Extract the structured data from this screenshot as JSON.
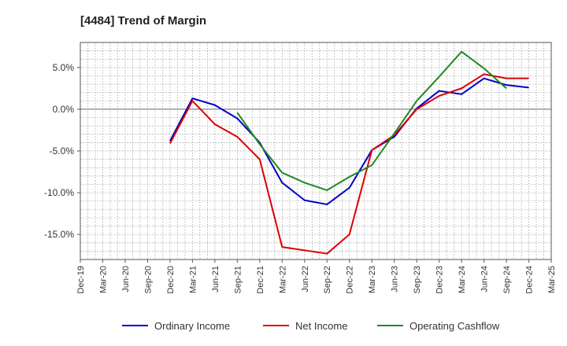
{
  "chart_data": {
    "type": "line",
    "title": "[4484]  Trend of Margin",
    "xlabel": "",
    "ylabel": "",
    "x": [
      "Dec-19",
      "Mar-20",
      "Jun-20",
      "Sep-20",
      "Dec-20",
      "Mar-21",
      "Jun-21",
      "Sep-21",
      "Dec-21",
      "Mar-22",
      "Jun-22",
      "Sep-22",
      "Dec-22",
      "Mar-23",
      "Jun-23",
      "Sep-23",
      "Dec-23",
      "Mar-24",
      "Jun-24",
      "Sep-24",
      "Dec-24",
      "Mar-25"
    ],
    "ylim": [
      -18,
      8
    ],
    "yticks": [
      5,
      0,
      -5,
      -10,
      -15
    ],
    "ytick_labels": [
      "5.0%",
      "0.0%",
      "-5.0%",
      "-10.0%",
      "-15.0%"
    ],
    "grid": true,
    "legend_position": "bottom",
    "series": [
      {
        "name": "Ordinary Income",
        "color": "#0000cc",
        "values": [
          null,
          null,
          null,
          null,
          -3.8,
          1.3,
          0.5,
          -1.1,
          -4.0,
          -8.8,
          -10.9,
          -11.4,
          -9.4,
          -4.9,
          -3.3,
          0.1,
          2.2,
          1.8,
          3.7,
          2.9,
          2.6,
          null
        ]
      },
      {
        "name": "Net Income",
        "color": "#dd0000",
        "values": [
          null,
          null,
          null,
          null,
          -4.1,
          1.0,
          -1.8,
          -3.3,
          -6.0,
          -16.5,
          -16.9,
          -17.3,
          -15.0,
          -4.9,
          -3.1,
          0.0,
          1.6,
          2.5,
          4.2,
          3.7,
          3.7,
          null
        ]
      },
      {
        "name": "Operating Cashflow",
        "color": "#228822",
        "values": [
          null,
          null,
          null,
          null,
          null,
          null,
          null,
          -0.4,
          -4.2,
          -7.6,
          -8.8,
          -9.7,
          -8.1,
          -6.7,
          -2.9,
          1.0,
          3.9,
          6.9,
          4.9,
          2.5,
          null,
          null
        ]
      }
    ]
  }
}
